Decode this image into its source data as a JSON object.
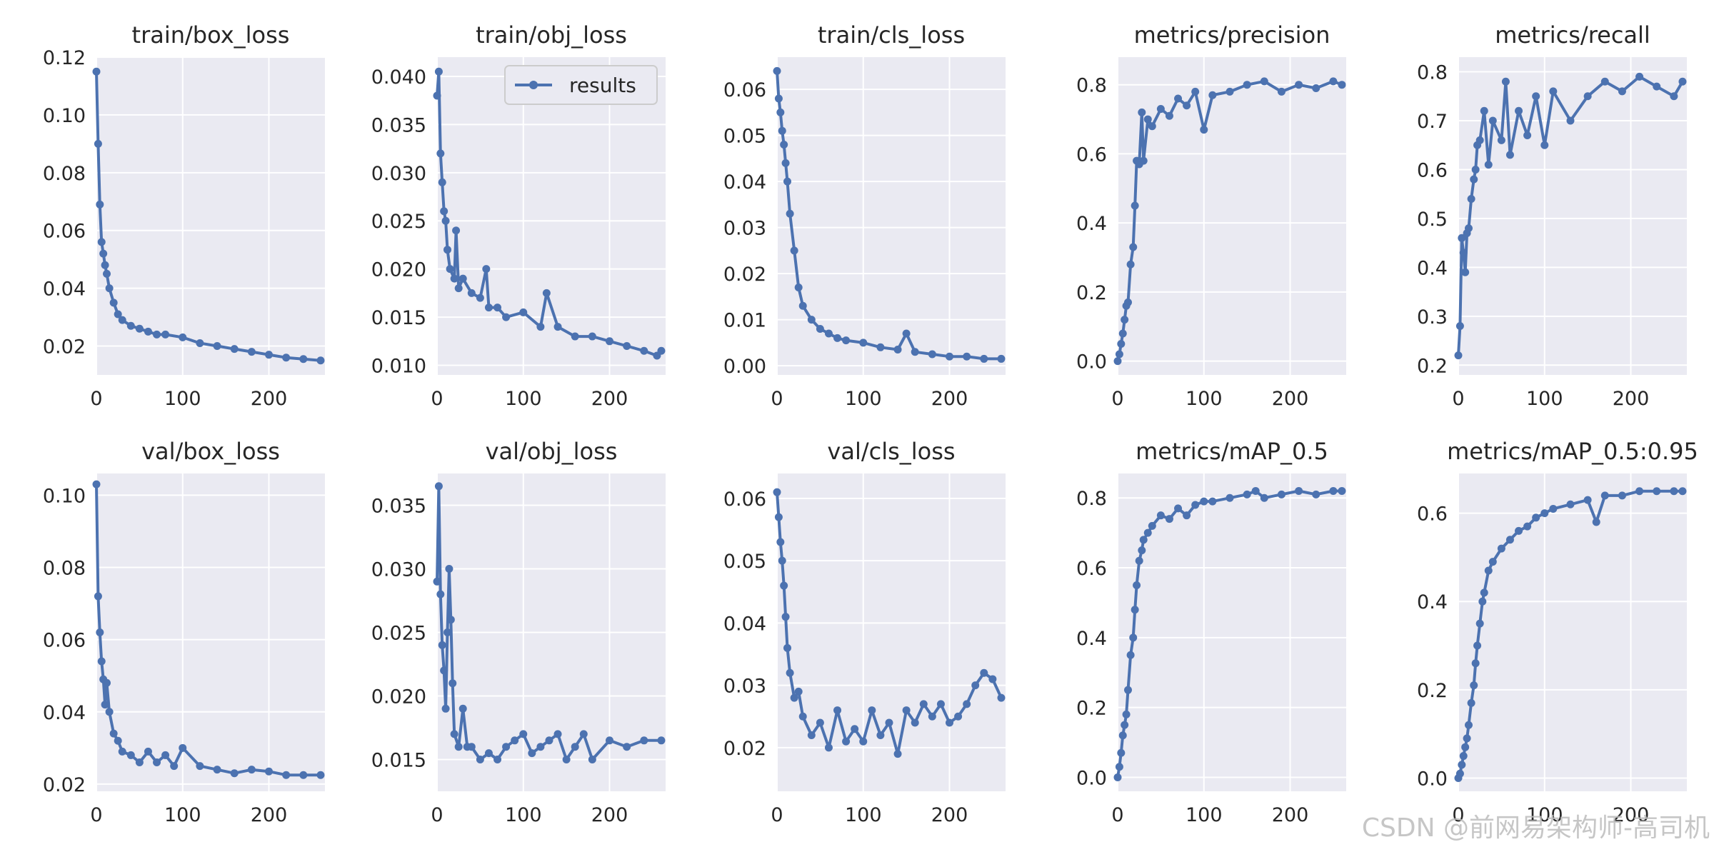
{
  "colors": {
    "line": "#4c72b0",
    "panel_bg": "#eaeaf2",
    "grid": "#ffffff",
    "text": "#262626"
  },
  "legend": {
    "label": "results",
    "location": "upper-right of train/obj_loss"
  },
  "watermark": "CSDN @前网易架构师-高司机",
  "chart_data": [
    {
      "type": "line",
      "title": "train/box_loss",
      "xlim": [
        0,
        265
      ],
      "ylim": [
        0.01,
        0.12
      ],
      "xticks": [
        0,
        100,
        200
      ],
      "yticks": [
        0.02,
        0.04,
        0.06,
        0.08,
        0.1,
        0.12
      ],
      "yfmt": 2,
      "series": [
        {
          "name": "results",
          "x": [
            0,
            2,
            4,
            6,
            8,
            10,
            12,
            15,
            20,
            25,
            30,
            40,
            50,
            60,
            70,
            80,
            100,
            120,
            140,
            160,
            180,
            200,
            220,
            240,
            260
          ],
          "y": [
            0.115,
            0.09,
            0.069,
            0.056,
            0.052,
            0.048,
            0.045,
            0.04,
            0.035,
            0.031,
            0.029,
            0.027,
            0.026,
            0.025,
            0.024,
            0.024,
            0.023,
            0.021,
            0.02,
            0.019,
            0.018,
            0.017,
            0.016,
            0.0155,
            0.015
          ]
        }
      ]
    },
    {
      "type": "line",
      "title": "train/obj_loss",
      "xlim": [
        0,
        265
      ],
      "ylim": [
        0.009,
        0.042
      ],
      "xticks": [
        0,
        100,
        200
      ],
      "yticks": [
        0.01,
        0.015,
        0.02,
        0.025,
        0.03,
        0.035,
        0.04
      ],
      "yfmt": 3,
      "series": [
        {
          "name": "results",
          "x": [
            0,
            2,
            4,
            6,
            8,
            10,
            12,
            15,
            20,
            22,
            25,
            30,
            40,
            50,
            57,
            60,
            70,
            80,
            100,
            120,
            127,
            140,
            160,
            180,
            200,
            220,
            240,
            255,
            260
          ],
          "y": [
            0.038,
            0.0405,
            0.032,
            0.029,
            0.026,
            0.025,
            0.022,
            0.02,
            0.019,
            0.024,
            0.018,
            0.019,
            0.0175,
            0.017,
            0.02,
            0.016,
            0.016,
            0.015,
            0.0155,
            0.014,
            0.0175,
            0.014,
            0.013,
            0.013,
            0.0125,
            0.012,
            0.0115,
            0.011,
            0.0115
          ]
        }
      ]
    },
    {
      "type": "line",
      "title": "train/cls_loss",
      "xlim": [
        0,
        265
      ],
      "ylim": [
        -0.002,
        0.067
      ],
      "xticks": [
        0,
        100,
        200
      ],
      "yticks": [
        0.0,
        0.01,
        0.02,
        0.03,
        0.04,
        0.05,
        0.06
      ],
      "yfmt": 2,
      "series": [
        {
          "name": "results",
          "x": [
            0,
            2,
            4,
            6,
            8,
            10,
            12,
            15,
            20,
            25,
            30,
            40,
            50,
            60,
            70,
            80,
            100,
            120,
            140,
            150,
            160,
            180,
            200,
            220,
            240,
            260
          ],
          "y": [
            0.064,
            0.058,
            0.055,
            0.051,
            0.048,
            0.044,
            0.04,
            0.033,
            0.025,
            0.017,
            0.013,
            0.01,
            0.008,
            0.007,
            0.006,
            0.0055,
            0.005,
            0.004,
            0.0035,
            0.007,
            0.003,
            0.0025,
            0.002,
            0.002,
            0.0015,
            0.0015
          ]
        }
      ]
    },
    {
      "type": "line",
      "title": "metrics/precision",
      "xlim": [
        0,
        265
      ],
      "ylim": [
        -0.04,
        0.88
      ],
      "xticks": [
        0,
        100,
        200
      ],
      "yticks": [
        0.0,
        0.2,
        0.4,
        0.6,
        0.8
      ],
      "yfmt": 1,
      "series": [
        {
          "name": "results",
          "x": [
            0,
            2,
            4,
            6,
            8,
            10,
            12,
            15,
            18,
            20,
            22,
            25,
            28,
            30,
            35,
            40,
            50,
            60,
            70,
            80,
            90,
            100,
            110,
            130,
            150,
            170,
            190,
            210,
            230,
            250,
            260
          ],
          "y": [
            0.0,
            0.02,
            0.05,
            0.08,
            0.12,
            0.16,
            0.17,
            0.28,
            0.33,
            0.45,
            0.58,
            0.57,
            0.72,
            0.58,
            0.7,
            0.68,
            0.73,
            0.71,
            0.76,
            0.74,
            0.78,
            0.67,
            0.77,
            0.78,
            0.8,
            0.81,
            0.78,
            0.8,
            0.79,
            0.81,
            0.8
          ]
        }
      ]
    },
    {
      "type": "line",
      "title": "metrics/recall",
      "xlim": [
        0,
        265
      ],
      "ylim": [
        0.18,
        0.83
      ],
      "xticks": [
        0,
        100,
        200
      ],
      "yticks": [
        0.2,
        0.3,
        0.4,
        0.5,
        0.6,
        0.7,
        0.8
      ],
      "yfmt": 1,
      "series": [
        {
          "name": "results",
          "x": [
            0,
            2,
            4,
            6,
            8,
            10,
            12,
            15,
            18,
            20,
            22,
            25,
            30,
            35,
            40,
            50,
            55,
            60,
            70,
            80,
            90,
            100,
            110,
            130,
            150,
            170,
            190,
            210,
            230,
            250,
            260
          ],
          "y": [
            0.22,
            0.28,
            0.46,
            0.43,
            0.39,
            0.47,
            0.48,
            0.54,
            0.58,
            0.6,
            0.65,
            0.66,
            0.72,
            0.61,
            0.7,
            0.66,
            0.78,
            0.63,
            0.72,
            0.67,
            0.75,
            0.65,
            0.76,
            0.7,
            0.75,
            0.78,
            0.76,
            0.79,
            0.77,
            0.75,
            0.78
          ]
        }
      ]
    },
    {
      "type": "line",
      "title": "val/box_loss",
      "xlim": [
        0,
        265
      ],
      "ylim": [
        0.018,
        0.106
      ],
      "xticks": [
        0,
        100,
        200
      ],
      "yticks": [
        0.02,
        0.04,
        0.06,
        0.08,
        0.1
      ],
      "yfmt": 2,
      "series": [
        {
          "name": "results",
          "x": [
            0,
            2,
            4,
            6,
            8,
            10,
            12,
            15,
            20,
            25,
            30,
            40,
            50,
            60,
            70,
            80,
            90,
            100,
            120,
            140,
            160,
            180,
            200,
            220,
            240,
            260
          ],
          "y": [
            0.103,
            0.072,
            0.062,
            0.054,
            0.049,
            0.042,
            0.048,
            0.04,
            0.034,
            0.032,
            0.029,
            0.028,
            0.026,
            0.029,
            0.026,
            0.028,
            0.025,
            0.03,
            0.025,
            0.024,
            0.023,
            0.024,
            0.0235,
            0.0225,
            0.0225,
            0.0225
          ]
        }
      ]
    },
    {
      "type": "line",
      "title": "val/obj_loss",
      "xlim": [
        0,
        265
      ],
      "ylim": [
        0.0125,
        0.0375
      ],
      "xticks": [
        0,
        100,
        200
      ],
      "yticks": [
        0.015,
        0.02,
        0.025,
        0.03,
        0.035
      ],
      "yfmt": 3,
      "series": [
        {
          "name": "results",
          "x": [
            0,
            2,
            4,
            6,
            8,
            10,
            12,
            14,
            16,
            18,
            20,
            25,
            30,
            35,
            40,
            50,
            60,
            70,
            80,
            90,
            100,
            110,
            120,
            130,
            140,
            150,
            160,
            170,
            180,
            200,
            220,
            240,
            260
          ],
          "y": [
            0.029,
            0.0365,
            0.028,
            0.024,
            0.022,
            0.019,
            0.025,
            0.03,
            0.026,
            0.021,
            0.017,
            0.016,
            0.019,
            0.016,
            0.016,
            0.015,
            0.0155,
            0.015,
            0.016,
            0.0165,
            0.017,
            0.0155,
            0.016,
            0.0165,
            0.017,
            0.015,
            0.016,
            0.017,
            0.015,
            0.0165,
            0.016,
            0.0165,
            0.0165
          ]
        }
      ]
    },
    {
      "type": "line",
      "title": "val/cls_loss",
      "xlim": [
        0,
        265
      ],
      "ylim": [
        0.013,
        0.064
      ],
      "xticks": [
        0,
        100,
        200
      ],
      "yticks": [
        0.02,
        0.03,
        0.04,
        0.05,
        0.06
      ],
      "yfmt": 2,
      "series": [
        {
          "name": "results",
          "x": [
            0,
            2,
            4,
            6,
            8,
            10,
            12,
            15,
            20,
            25,
            30,
            40,
            50,
            60,
            70,
            80,
            90,
            100,
            110,
            120,
            130,
            140,
            150,
            160,
            170,
            180,
            190,
            200,
            210,
            220,
            230,
            240,
            250,
            260
          ],
          "y": [
            0.061,
            0.057,
            0.053,
            0.05,
            0.046,
            0.041,
            0.036,
            0.032,
            0.028,
            0.029,
            0.025,
            0.022,
            0.024,
            0.02,
            0.026,
            0.021,
            0.023,
            0.021,
            0.026,
            0.022,
            0.024,
            0.019,
            0.026,
            0.024,
            0.027,
            0.025,
            0.027,
            0.024,
            0.025,
            0.027,
            0.03,
            0.032,
            0.031,
            0.028
          ]
        }
      ]
    },
    {
      "type": "line",
      "title": "metrics/mAP_0.5",
      "xlim": [
        0,
        265
      ],
      "ylim": [
        -0.04,
        0.87
      ],
      "xticks": [
        0,
        100,
        200
      ],
      "yticks": [
        0.0,
        0.2,
        0.4,
        0.6,
        0.8
      ],
      "yfmt": 1,
      "series": [
        {
          "name": "results",
          "x": [
            0,
            2,
            4,
            6,
            8,
            10,
            12,
            15,
            18,
            20,
            22,
            25,
            28,
            30,
            35,
            40,
            50,
            60,
            70,
            80,
            90,
            100,
            110,
            130,
            150,
            160,
            170,
            190,
            210,
            230,
            250,
            260
          ],
          "y": [
            0.0,
            0.03,
            0.07,
            0.12,
            0.15,
            0.18,
            0.25,
            0.35,
            0.4,
            0.48,
            0.55,
            0.62,
            0.65,
            0.68,
            0.7,
            0.72,
            0.75,
            0.74,
            0.77,
            0.75,
            0.78,
            0.79,
            0.79,
            0.8,
            0.81,
            0.82,
            0.8,
            0.81,
            0.82,
            0.81,
            0.82,
            0.82
          ]
        }
      ]
    },
    {
      "type": "line",
      "title": "metrics/mAP_0.5:0.95",
      "xlim": [
        0,
        265
      ],
      "ylim": [
        -0.03,
        0.69
      ],
      "xticks": [
        0,
        100,
        200
      ],
      "yticks": [
        0.0,
        0.2,
        0.4,
        0.6
      ],
      "yfmt": 1,
      "series": [
        {
          "name": "results",
          "x": [
            0,
            2,
            4,
            6,
            8,
            10,
            12,
            15,
            18,
            20,
            22,
            25,
            28,
            30,
            35,
            40,
            50,
            60,
            70,
            80,
            90,
            100,
            110,
            130,
            150,
            160,
            170,
            190,
            210,
            230,
            250,
            260
          ],
          "y": [
            0.0,
            0.01,
            0.03,
            0.05,
            0.07,
            0.09,
            0.12,
            0.17,
            0.21,
            0.26,
            0.3,
            0.35,
            0.4,
            0.42,
            0.47,
            0.49,
            0.52,
            0.54,
            0.56,
            0.57,
            0.59,
            0.6,
            0.61,
            0.62,
            0.63,
            0.58,
            0.64,
            0.64,
            0.65,
            0.65,
            0.65,
            0.65
          ]
        }
      ]
    }
  ]
}
